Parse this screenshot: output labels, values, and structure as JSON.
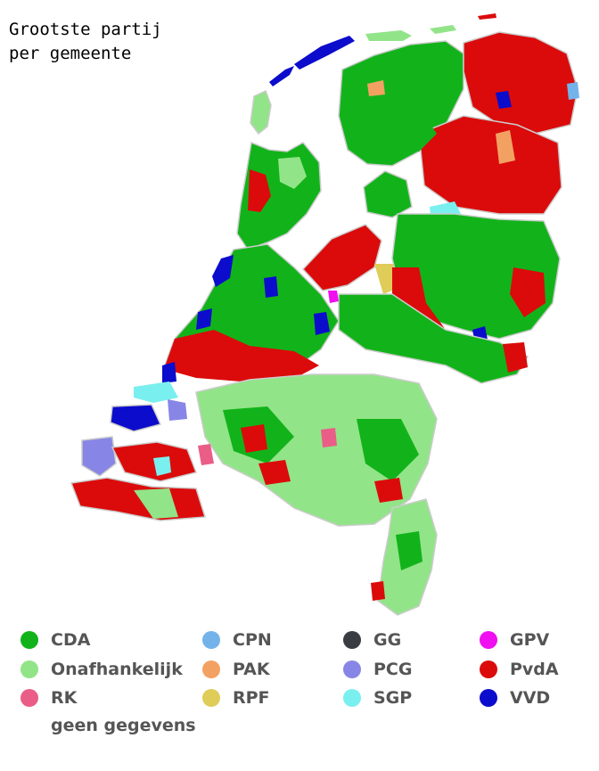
{
  "title_line1": "Grootste partij",
  "title_line2": "per gemeente",
  "legend": [
    {
      "label": "CDA",
      "color": "#12b31a"
    },
    {
      "label": "Onafhankelijk",
      "color": "#92e488"
    },
    {
      "label": "RK",
      "color": "#ea5d87"
    },
    {
      "label": "CPN",
      "color": "#74b3ea"
    },
    {
      "label": "PAK",
      "color": "#f3a163"
    },
    {
      "label": "RPF",
      "color": "#dfcc59"
    },
    {
      "label": "GG",
      "color": "#3b3b43"
    },
    {
      "label": "PCG",
      "color": "#8786e6"
    },
    {
      "label": "SGP",
      "color": "#7aefef"
    },
    {
      "label": "GPV",
      "color": "#f00ff0"
    },
    {
      "label": "PvdA",
      "color": "#db0b0b"
    },
    {
      "label": "VVD",
      "color": "#0c0ccc"
    }
  ],
  "no_data_label": "geen gegevens"
}
